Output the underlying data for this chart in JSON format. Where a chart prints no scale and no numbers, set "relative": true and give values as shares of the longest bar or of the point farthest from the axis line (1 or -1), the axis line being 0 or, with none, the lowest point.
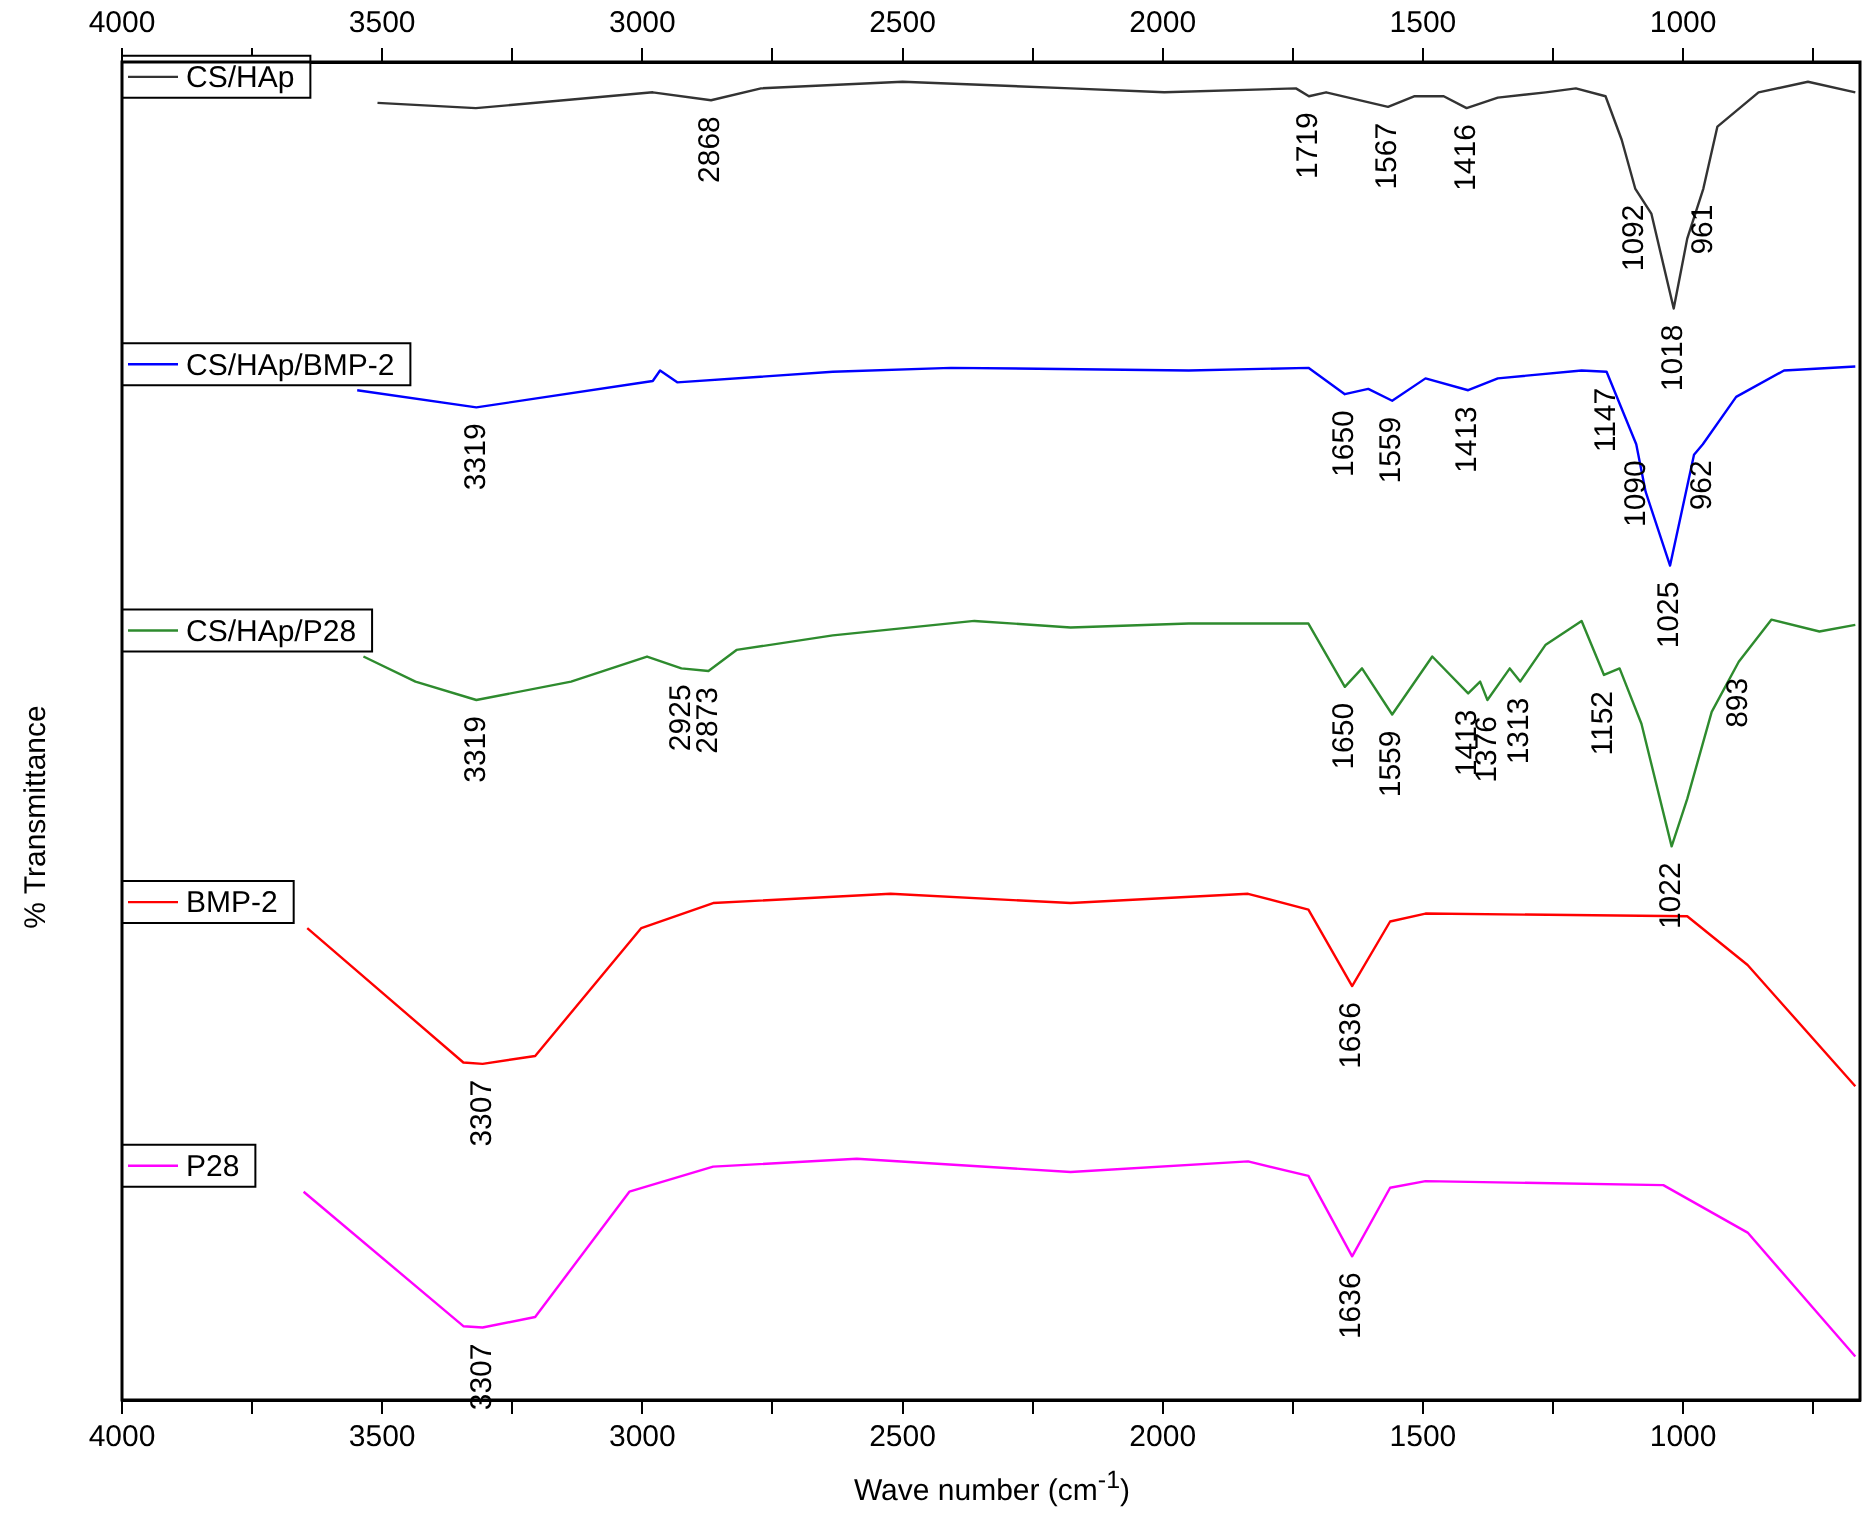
{
  "chart_data": {
    "type": "line",
    "relative": true,
    "xlabel": "Wave number (cm$^{-1}$)",
    "ylabel": "% Transmittance",
    "xlim": [
      4000,
      660
    ],
    "xticks": [
      4000,
      {
        "value": 3750,
        "label": null
      },
      3500,
      {
        "value": 3250,
        "label": null
      },
      3000,
      {
        "value": 2750,
        "label": null
      },
      2500,
      {
        "value": 2250,
        "label": null
      },
      2000,
      {
        "value": 1750,
        "label": null
      },
      1500,
      {
        "value": 1250,
        "label": null
      },
      1000,
      {
        "value": 750,
        "label": null
      }
    ],
    "x2lim": [
      4000,
      660
    ],
    "x2ticks": [
      4000,
      {
        "value": 3750,
        "label": null
      },
      3500,
      {
        "value": 3250,
        "label": null
      },
      3000,
      {
        "value": 2750,
        "label": null
      },
      2500,
      {
        "value": 2250,
        "label": null
      },
      2000,
      {
        "value": 1750,
        "label": null
      },
      1500,
      {
        "value": 1250,
        "label": null
      },
      1000,
      {
        "value": 750,
        "label": null
      }
    ],
    "grid": false,
    "marker": "none",
    "line_style": "solid",
    "legend": "left",
    "series": [
      {
        "name": "CS/HAp",
        "color": "#333333",
        "x": [
          3509,
          3320,
          2980,
          2868,
          2772,
          2500,
          2177,
          1997,
          1744,
          1719,
          1686,
          1567,
          1517,
          1460,
          1416,
          1356,
          1264,
          1206,
          1149,
          1118,
          1092,
          1061,
          1018,
          992,
          961,
          934,
          855,
          760,
          669
        ],
        "values": [
          0.984,
          0.98,
          0.992,
          0.986,
          0.995,
          1,
          0.995,
          0.992,
          0.995,
          0.989,
          0.992,
          0.981,
          0.989,
          0.989,
          0.98,
          0.988,
          0.992,
          0.995,
          0.989,
          0.956,
          0.919,
          0.9,
          0.828,
          0.881,
          0.919,
          0.966,
          0.992,
          1,
          0.992
        ]
      },
      {
        "name": "CS/HAp/BMP-2",
        "color": "#0000ff",
        "x": [
          3548,
          3319,
          2980,
          2966,
          2933,
          2634,
          2407,
          1950,
          1720,
          1650,
          1605,
          1559,
          1495,
          1413,
          1356,
          1195,
          1147,
          1090,
          1072,
          1025,
          979,
          962,
          898,
          806,
          669
        ],
        "values": [
          0.766,
          0.753,
          0.773,
          0.781,
          0.772,
          0.78,
          0.783,
          0.781,
          0.783,
          0.763,
          0.767,
          0.758,
          0.775,
          0.766,
          0.775,
          0.781,
          0.78,
          0.725,
          0.689,
          0.633,
          0.717,
          0.725,
          0.761,
          0.781,
          0.784
        ]
      },
      {
        "name": "CS/HAp/P28",
        "color": "#2e8b2e",
        "x": [
          3536,
          3436,
          3319,
          3137,
          2991,
          2925,
          2873,
          2819,
          2634,
          2362,
          2177,
          1950,
          1720,
          1650,
          1617,
          1559,
          1482,
          1413,
          1390,
          1376,
          1333,
          1313,
          1264,
          1195,
          1152,
          1122,
          1080,
          1022,
          992,
          945,
          893,
          830,
          738,
          669
        ],
        "values": [
          0.564,
          0.545,
          0.531,
          0.545,
          0.564,
          0.555,
          0.553,
          0.569,
          0.58,
          0.591,
          0.586,
          0.589,
          0.589,
          0.541,
          0.555,
          0.52,
          0.564,
          0.536,
          0.545,
          0.531,
          0.555,
          0.545,
          0.573,
          0.591,
          0.55,
          0.555,
          0.513,
          0.42,
          0.456,
          0.522,
          0.56,
          0.592,
          0.583,
          0.588
        ]
      },
      {
        "name": "BMP-2",
        "color": "#ff0000",
        "x": [
          3644,
          3344,
          3307,
          3206,
          3002,
          2864,
          2523,
          2177,
          1836,
          1720,
          1636,
          1563,
          1495,
          992,
          876,
          669
        ],
        "values": [
          0.358,
          0.256,
          0.255,
          0.261,
          0.358,
          0.377,
          0.384,
          0.377,
          0.384,
          0.372,
          0.314,
          0.363,
          0.369,
          0.367,
          0.33,
          0.238
        ]
      },
      {
        "name": "P28",
        "color": "#ff00ff",
        "x": [
          3651,
          3344,
          3307,
          3206,
          3025,
          2864,
          2588,
          2177,
          1836,
          1720,
          1636,
          1563,
          1495,
          1038,
          876,
          669
        ],
        "values": [
          0.158,
          0.056,
          0.055,
          0.063,
          0.158,
          0.177,
          0.183,
          0.173,
          0.181,
          0.17,
          0.109,
          0.161,
          0.166,
          0.163,
          0.127,
          0.033
        ]
      }
    ],
    "annotations": [
      {
        "text": "2868",
        "x": 2868,
        "y": 0.986
      },
      {
        "text": "1719",
        "x": 1719,
        "y": 0.989
      },
      {
        "text": "1567",
        "x": 1567,
        "y": 0.981
      },
      {
        "text": "1416",
        "x": 1416,
        "y": 0.98
      },
      {
        "text": "1092",
        "x": 1092,
        "y": 0.919
      },
      {
        "text": "1018",
        "x": 1018,
        "y": 0.828
      },
      {
        "text": "961",
        "x": 961,
        "y": 0.919
      },
      {
        "text": "3319",
        "x": 3319,
        "y": 0.753
      },
      {
        "text": "1650",
        "x": 1650,
        "y": 0.763
      },
      {
        "text": "1559",
        "x": 1559,
        "y": 0.758
      },
      {
        "text": "1413",
        "x": 1413,
        "y": 0.766
      },
      {
        "text": "1147",
        "x": 1147,
        "y": 0.78
      },
      {
        "text": "1090",
        "x": 1090,
        "y": 0.725
      },
      {
        "text": "962",
        "x": 962,
        "y": 0.725
      },
      {
        "text": "1025",
        "x": 1025,
        "y": 0.633
      },
      {
        "text": "3319",
        "x": 3319,
        "y": 0.531
      },
      {
        "text": "2925",
        "x": 2925,
        "y": 0.555
      },
      {
        "text": "2873",
        "x": 2873,
        "y": 0.553
      },
      {
        "text": "1650",
        "x": 1650,
        "y": 0.541
      },
      {
        "text": "1559",
        "x": 1559,
        "y": 0.52
      },
      {
        "text": "1413",
        "x": 1413,
        "y": 0.536
      },
      {
        "text": "1376",
        "x": 1376,
        "y": 0.531
      },
      {
        "text": "1313",
        "x": 1313,
        "y": 0.545
      },
      {
        "text": "1152",
        "x": 1152,
        "y": 0.55
      },
      {
        "text": "893",
        "x": 893,
        "y": 0.56
      },
      {
        "text": "1022",
        "x": 1022,
        "y": 0.42
      },
      {
        "text": "3307",
        "x": 3307,
        "y": 0.255
      },
      {
        "text": "1636",
        "x": 1636,
        "y": 0.314
      },
      {
        "text": "3307",
        "x": 3307,
        "y": 0.055
      },
      {
        "text": "1636",
        "x": 1636,
        "y": 0.109
      }
    ]
  }
}
